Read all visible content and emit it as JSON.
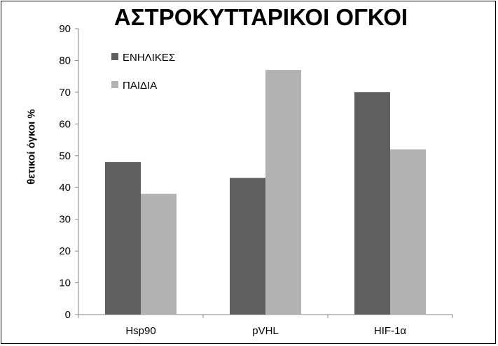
{
  "chart_data": {
    "type": "bar",
    "title": "ΑΣΤΡΟΚΥΤΤΑΡΙΚΟΙ ΟΓΚΟΙ",
    "xlabel": "",
    "ylabel": "θετικοί όγκοι %",
    "categories": [
      "Hsp90",
      "pVHL",
      "HIF-1α"
    ],
    "series": [
      {
        "name": "ΕΝΗΛΙΚΕΣ",
        "values": [
          48,
          43,
          70
        ],
        "color": "#5f5f5f"
      },
      {
        "name": "ΠΑΙΔΙΑ",
        "values": [
          38,
          77,
          52
        ],
        "color": "#b2b2b2"
      }
    ],
    "ylim": [
      0,
      90
    ],
    "yticks": [
      0,
      10,
      20,
      30,
      40,
      50,
      60,
      70,
      80,
      90
    ],
    "grid": false,
    "legend_position": "top-left"
  }
}
